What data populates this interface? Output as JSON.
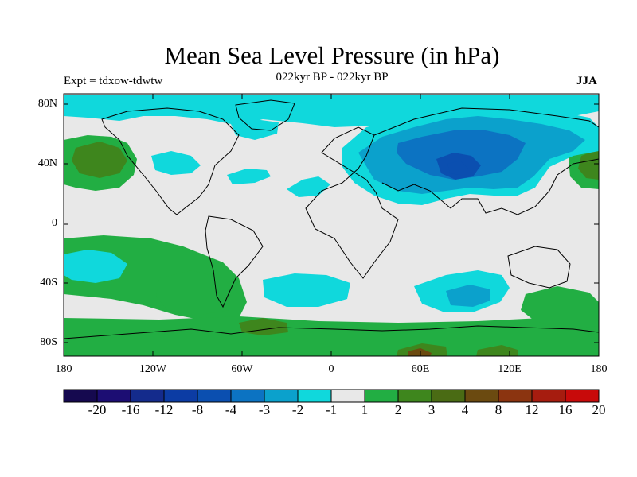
{
  "title": "Mean Sea Level Pressure (in hPa)",
  "subtitle": "022kyr BP - 022kyr BP",
  "expt_label": "Expt = tdxow-tdwtw",
  "season": "JJA",
  "lat_labels": [
    "80N",
    "40N",
    "0",
    "40S",
    "80S"
  ],
  "lon_labels": [
    "180",
    "120W",
    "60W",
    "0",
    "60E",
    "120E",
    "180"
  ],
  "colorbar": {
    "colors": [
      "#15094f",
      "#1c0d73",
      "#142b8c",
      "#0c3ca4",
      "#0b4fb0",
      "#0c73c2",
      "#0ba1cc",
      "#10d8dc",
      "#e8e8e8",
      "#22ae43",
      "#3e861d",
      "#4a6b14",
      "#6b4a10",
      "#8b3410",
      "#a61c0f",
      "#c80a0a"
    ],
    "labels": [
      "-20",
      "-16",
      "-12",
      "-8",
      "-4",
      "-3",
      "-2",
      "-1",
      "1",
      "2",
      "3",
      "4",
      "8",
      "12",
      "16",
      "20"
    ]
  },
  "map_colors": {
    "neutral": "#e8e8e8",
    "neg1": "#10d8dc",
    "neg2": "#0ba1cc",
    "neg3": "#0c73c2",
    "neg4": "#0b4fb0",
    "pos1": "#22ae43",
    "pos2": "#3e861d",
    "pos3": "#4a6b14",
    "pos4": "#6b4a10"
  }
}
